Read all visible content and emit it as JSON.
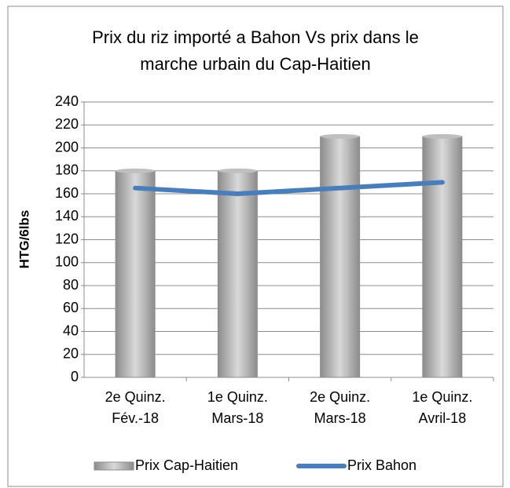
{
  "chart_data": {
    "type": "bar",
    "title": [
      "Prix du riz importé a Bahon Vs prix dans le",
      "marche urbain du Cap-Haitien"
    ],
    "y_label": "HTG/6lbs",
    "categories": [
      [
        "2e Quinz.",
        "Fév.-18"
      ],
      [
        "1e Quinz.",
        "Mars-18"
      ],
      [
        "2e Quinz.",
        "Mars-18"
      ],
      [
        "1e Quinz.",
        "Avril-18"
      ]
    ],
    "series": [
      {
        "name": "Prix Cap-Haitien",
        "type": "bar",
        "color": "#a6a6a6",
        "values": [
          180,
          180,
          210,
          210
        ]
      },
      {
        "name": "Prix Bahon",
        "type": "line",
        "color": "#4a7ebb",
        "values": [
          165,
          160,
          165,
          170
        ]
      }
    ],
    "ylim": [
      0,
      240
    ],
    "yticks": [
      0,
      20,
      40,
      60,
      80,
      100,
      120,
      140,
      160,
      180,
      200,
      220,
      240
    ],
    "grid": true,
    "legend": "bottom"
  }
}
